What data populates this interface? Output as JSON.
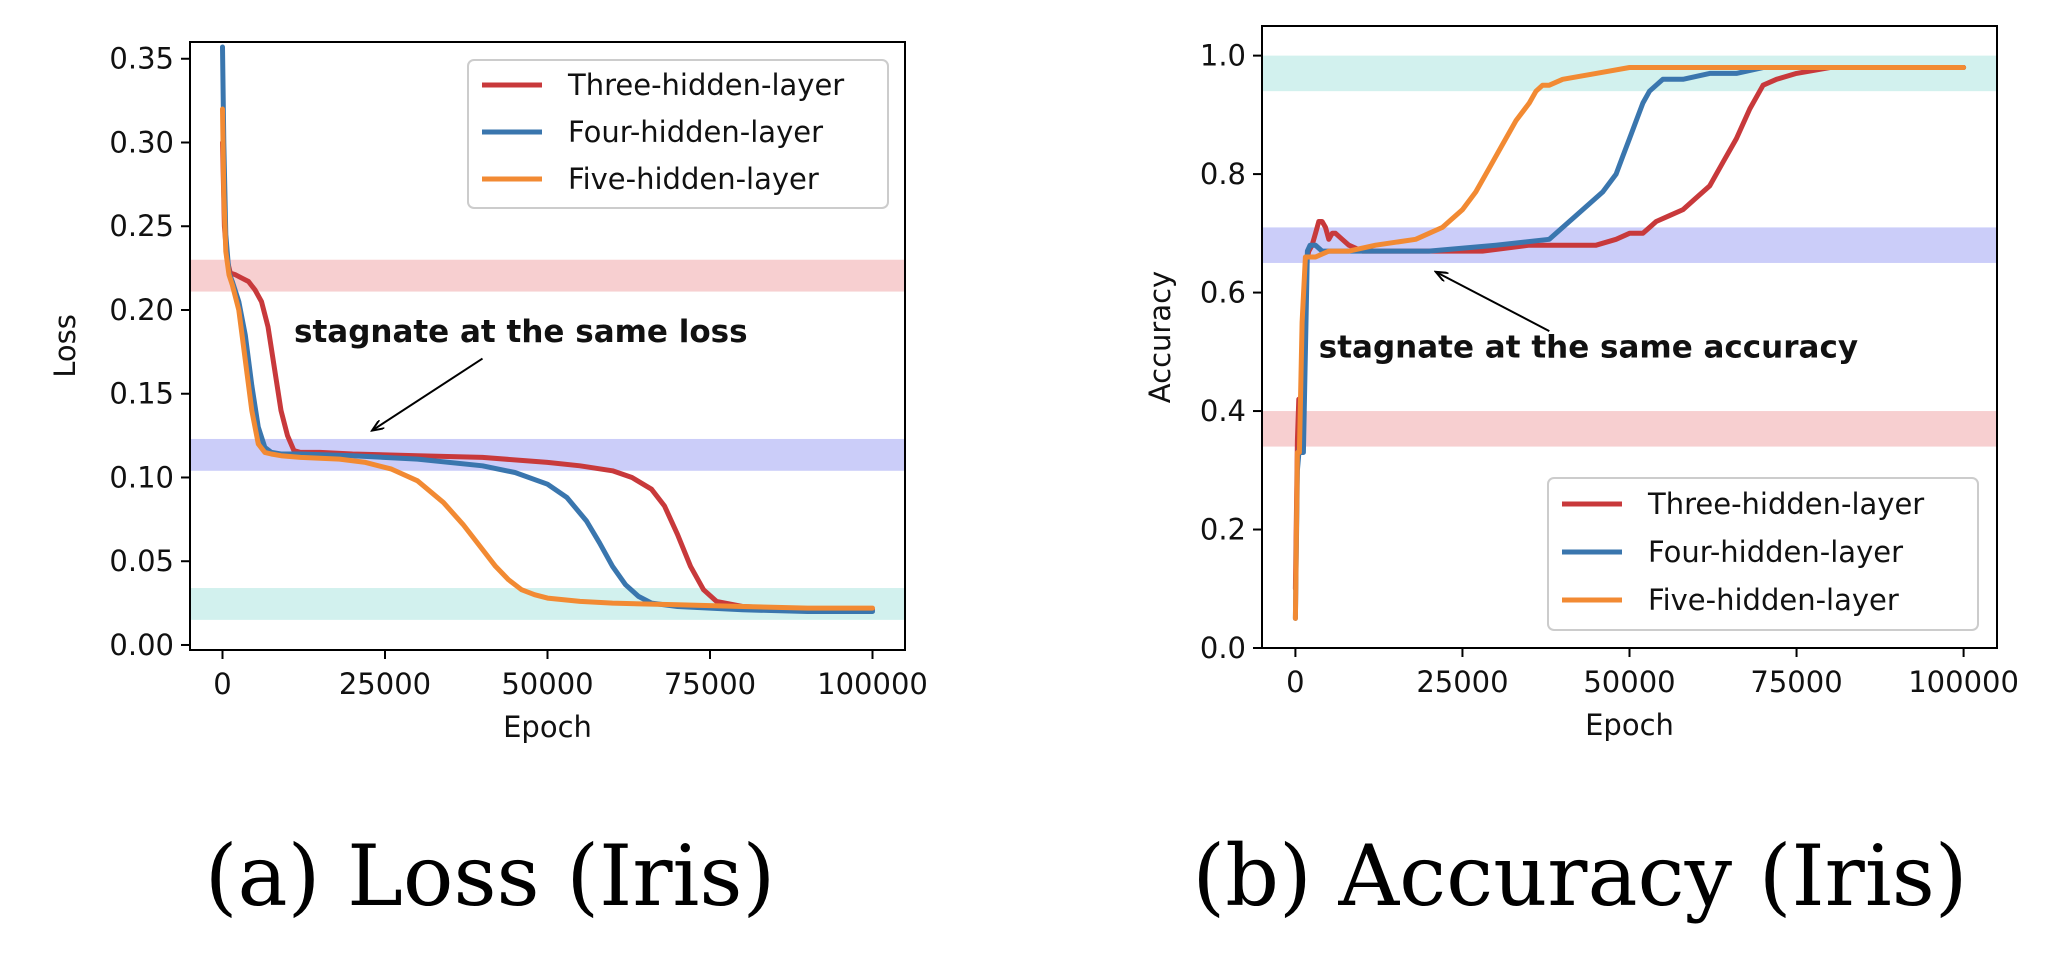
{
  "chart_data": [
    {
      "type": "line",
      "caption": "(a) Loss (Iris)",
      "xlabel": "Epoch",
      "ylabel": "Loss",
      "xlim": [
        -5000,
        105000
      ],
      "ylim": [
        -0.003,
        0.36
      ],
      "xticks": [
        0,
        25000,
        50000,
        75000,
        100000
      ],
      "yticks": [
        0.0,
        0.05,
        0.1,
        0.15,
        0.2,
        0.25,
        0.3,
        0.35
      ],
      "xtick_labels": [
        "0",
        "25000",
        "50000",
        "75000",
        "100000"
      ],
      "ytick_labels": [
        "0.00",
        "0.05",
        "0.10",
        "0.15",
        "0.20",
        "0.25",
        "0.30",
        "0.35"
      ],
      "grid": false,
      "legend_placement": "top-right",
      "bands": [
        {
          "y0": 0.211,
          "y1": 0.23,
          "color": "#f7cfd0"
        },
        {
          "y0": 0.104,
          "y1": 0.123,
          "color": "#cbcdf9"
        },
        {
          "y0": 0.015,
          "y1": 0.034,
          "color": "#d2f1ee"
        }
      ],
      "annotation": {
        "text": "stagnate at the same loss",
        "text_x": 11000,
        "text_y": 0.181,
        "arrow_from": [
          40000,
          0.171
        ],
        "arrow_to": [
          23000,
          0.128
        ]
      },
      "series": [
        {
          "name": "Three-hidden-layer",
          "color": "#c8393b",
          "x": [
            0,
            300,
            700,
            1200,
            2000,
            3000,
            4000,
            5000,
            6000,
            7000,
            8000,
            9000,
            10000,
            11000,
            12000,
            15000,
            20000,
            30000,
            40000,
            50000,
            55000,
            60000,
            63000,
            66000,
            68000,
            70000,
            72000,
            74000,
            76000,
            80000,
            85000,
            90000,
            95000,
            100000
          ],
          "y": [
            0.3,
            0.25,
            0.23,
            0.222,
            0.221,
            0.219,
            0.217,
            0.212,
            0.205,
            0.19,
            0.165,
            0.14,
            0.125,
            0.116,
            0.115,
            0.115,
            0.114,
            0.113,
            0.112,
            0.109,
            0.107,
            0.104,
            0.1,
            0.093,
            0.083,
            0.066,
            0.047,
            0.033,
            0.026,
            0.023,
            0.022,
            0.021,
            0.021,
            0.021
          ]
        },
        {
          "name": "Four-hidden-layer",
          "color": "#3a76ae",
          "x": [
            0,
            200,
            500,
            1000,
            1500,
            2500,
            3500,
            4500,
            5500,
            6500,
            7500,
            9000,
            12000,
            20000,
            30000,
            40000,
            45000,
            50000,
            53000,
            56000,
            58000,
            60000,
            62000,
            64000,
            66000,
            70000,
            75000,
            80000,
            90000,
            100000
          ],
          "y": [
            0.357,
            0.3,
            0.245,
            0.222,
            0.217,
            0.205,
            0.185,
            0.155,
            0.13,
            0.118,
            0.115,
            0.114,
            0.114,
            0.113,
            0.111,
            0.107,
            0.103,
            0.096,
            0.088,
            0.074,
            0.061,
            0.047,
            0.036,
            0.029,
            0.025,
            0.023,
            0.022,
            0.021,
            0.02,
            0.02
          ]
        },
        {
          "name": "Five-hidden-layer",
          "color": "#f28a33",
          "x": [
            0,
            200,
            500,
            1000,
            1500,
            2500,
            3500,
            4500,
            5500,
            6500,
            7500,
            9000,
            12000,
            18000,
            22000,
            26000,
            30000,
            34000,
            37000,
            40000,
            42000,
            44000,
            46000,
            48000,
            50000,
            55000,
            60000,
            70000,
            80000,
            90000,
            100000
          ],
          "y": [
            0.32,
            0.27,
            0.235,
            0.221,
            0.215,
            0.2,
            0.17,
            0.14,
            0.12,
            0.115,
            0.114,
            0.113,
            0.112,
            0.111,
            0.109,
            0.105,
            0.098,
            0.085,
            0.072,
            0.057,
            0.047,
            0.039,
            0.033,
            0.03,
            0.028,
            0.026,
            0.025,
            0.024,
            0.023,
            0.022,
            0.022
          ]
        }
      ]
    },
    {
      "type": "line",
      "caption": "(b) Accuracy (Iris)",
      "xlabel": "Epoch",
      "ylabel": "Accuracy",
      "xlim": [
        -5000,
        105000
      ],
      "ylim": [
        0.0,
        1.05
      ],
      "xticks": [
        0,
        25000,
        50000,
        75000,
        100000
      ],
      "yticks": [
        0.0,
        0.2,
        0.4,
        0.6,
        0.8,
        1.0
      ],
      "xtick_labels": [
        "0",
        "25000",
        "50000",
        "75000",
        "100000"
      ],
      "ytick_labels": [
        "0.0",
        "0.2",
        "0.4",
        "0.6",
        "0.8",
        "1.0"
      ],
      "grid": false,
      "legend_placement": "bottom-right",
      "bands": [
        {
          "y0": 0.94,
          "y1": 1.0,
          "color": "#d2f1ee"
        },
        {
          "y0": 0.65,
          "y1": 0.71,
          "color": "#cbcdf9"
        },
        {
          "y0": 0.34,
          "y1": 0.4,
          "color": "#f7cfd0"
        }
      ],
      "annotation": {
        "text": "stagnate at the same accuracy",
        "text_x": 3500,
        "text_y": 0.49,
        "arrow_from": [
          38000,
          0.535
        ],
        "arrow_to": [
          21000,
          0.635
        ]
      },
      "series": [
        {
          "name": "Three-hidden-layer",
          "color": "#c8393b",
          "x": [
            0,
            300,
            500,
            700,
            1000,
            1300,
            1600,
            2000,
            2500,
            3000,
            3500,
            4000,
            4500,
            5000,
            5500,
            6000,
            7000,
            8000,
            10000,
            15000,
            20000,
            28000,
            35000,
            42000,
            45000,
            48000,
            50000,
            52000,
            54000,
            56000,
            58000,
            60000,
            62000,
            64000,
            66000,
            68000,
            70000,
            72000,
            75000,
            80000,
            100000
          ],
          "y": [
            0.1,
            0.35,
            0.42,
            0.35,
            0.4,
            0.55,
            0.65,
            0.67,
            0.68,
            0.7,
            0.72,
            0.72,
            0.71,
            0.69,
            0.7,
            0.7,
            0.69,
            0.68,
            0.67,
            0.67,
            0.67,
            0.67,
            0.68,
            0.68,
            0.68,
            0.69,
            0.7,
            0.7,
            0.72,
            0.73,
            0.74,
            0.76,
            0.78,
            0.82,
            0.86,
            0.91,
            0.95,
            0.96,
            0.97,
            0.98,
            0.98
          ]
        },
        {
          "name": "Four-hidden-layer",
          "color": "#3a76ae",
          "x": [
            0,
            300,
            600,
            900,
            1200,
            1500,
            1800,
            2200,
            3000,
            4000,
            6000,
            10000,
            20000,
            30000,
            38000,
            40000,
            42000,
            44000,
            46000,
            48000,
            49000,
            50000,
            51000,
            52000,
            53000,
            54000,
            55000,
            58000,
            62000,
            66000,
            70000,
            80000,
            100000
          ],
          "y": [
            0.05,
            0.3,
            0.34,
            0.33,
            0.33,
            0.5,
            0.67,
            0.68,
            0.68,
            0.67,
            0.67,
            0.67,
            0.67,
            0.68,
            0.69,
            0.71,
            0.73,
            0.75,
            0.77,
            0.8,
            0.83,
            0.86,
            0.89,
            0.92,
            0.94,
            0.95,
            0.96,
            0.96,
            0.97,
            0.97,
            0.98,
            0.98,
            0.98
          ]
        },
        {
          "name": "Five-hidden-layer",
          "color": "#f28a33",
          "x": [
            0,
            300,
            600,
            1000,
            1500,
            2000,
            3000,
            5000,
            8000,
            12000,
            18000,
            22000,
            25000,
            27000,
            29000,
            31000,
            33000,
            35000,
            36000,
            37000,
            38000,
            40000,
            45000,
            50000,
            60000,
            80000,
            100000
          ],
          "y": [
            0.05,
            0.33,
            0.33,
            0.55,
            0.66,
            0.66,
            0.66,
            0.67,
            0.67,
            0.68,
            0.69,
            0.71,
            0.74,
            0.77,
            0.81,
            0.85,
            0.89,
            0.92,
            0.94,
            0.95,
            0.95,
            0.96,
            0.97,
            0.98,
            0.98,
            0.98,
            0.98
          ]
        }
      ]
    }
  ]
}
